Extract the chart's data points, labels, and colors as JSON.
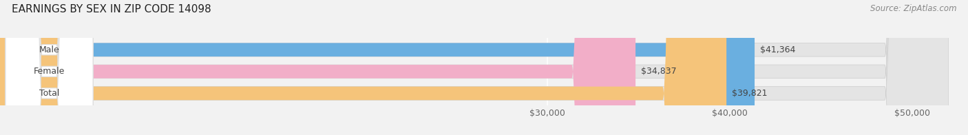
{
  "title": "EARNINGS BY SEX IN ZIP CODE 14098",
  "source": "Source: ZipAtlas.com",
  "categories": [
    "Male",
    "Female",
    "Total"
  ],
  "values": [
    41364,
    34837,
    39821
  ],
  "bar_colors": [
    "#6aafe0",
    "#f2aec8",
    "#f5c47a"
  ],
  "value_labels": [
    "$41,364",
    "$34,837",
    "$39,821"
  ],
  "xmin": 0,
  "xmax": 52000,
  "xticks": [
    30000,
    40000,
    50000
  ],
  "xtick_labels": [
    "$30,000",
    "$40,000",
    "$50,000"
  ],
  "bar_height": 0.62,
  "background_color": "#f2f2f2",
  "bar_background_color": "#e4e4e4",
  "title_fontsize": 11,
  "source_fontsize": 8.5,
  "tick_fontsize": 9,
  "label_fontsize": 9,
  "value_fontsize": 9,
  "grid_color": "#ffffff",
  "pill_color": "#ffffff",
  "pill_edge_color": "#dddddd"
}
